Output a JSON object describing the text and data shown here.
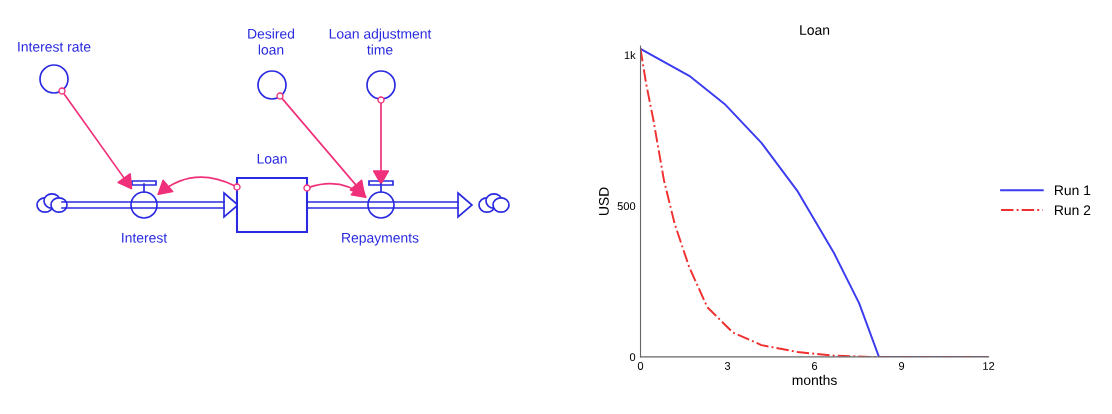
{
  "chart_data": [
    {
      "type": "other",
      "annotations": [
        "Interest rate",
        "Desired\nloan",
        "Loan adjustment\ntime",
        "Loan",
        "Interest",
        "Repayments"
      ]
    },
    {
      "type": "line",
      "title": "Loan",
      "xlabel": "months",
      "ylabel": "USD",
      "xlim": [
        0,
        12
      ],
      "ylim": [
        0,
        1030
      ],
      "xticks": [
        0,
        3,
        6,
        9,
        12
      ],
      "yticks": [
        0,
        500,
        {
          "value": 1000,
          "label": "1k"
        }
      ],
      "grid": false,
      "legend": "right",
      "marker": "none",
      "series": [
        {
          "name": "Run 1",
          "color": "#3b3bf0",
          "line_style": "solid",
          "x": [
            0,
            1.68,
            2.93,
            4.17,
            5.42,
            6.67,
            7.54,
            8.22,
            12
          ],
          "values": [
            1020,
            931,
            835,
            709,
            548,
            344,
            177,
            0,
            0
          ]
        },
        {
          "name": "Run 2",
          "color": "#f03030",
          "line_style": "dashdot",
          "x": [
            0,
            0.19,
            0.44,
            0.81,
            1.18,
            1.68,
            2.3,
            3.18,
            4.17,
            5.42,
            6.67,
            7.9,
            12
          ],
          "values": [
            1020,
            907,
            787,
            584,
            440,
            297,
            165,
            81,
            39,
            16,
            4,
            0,
            0
          ]
        }
      ]
    }
  ]
}
